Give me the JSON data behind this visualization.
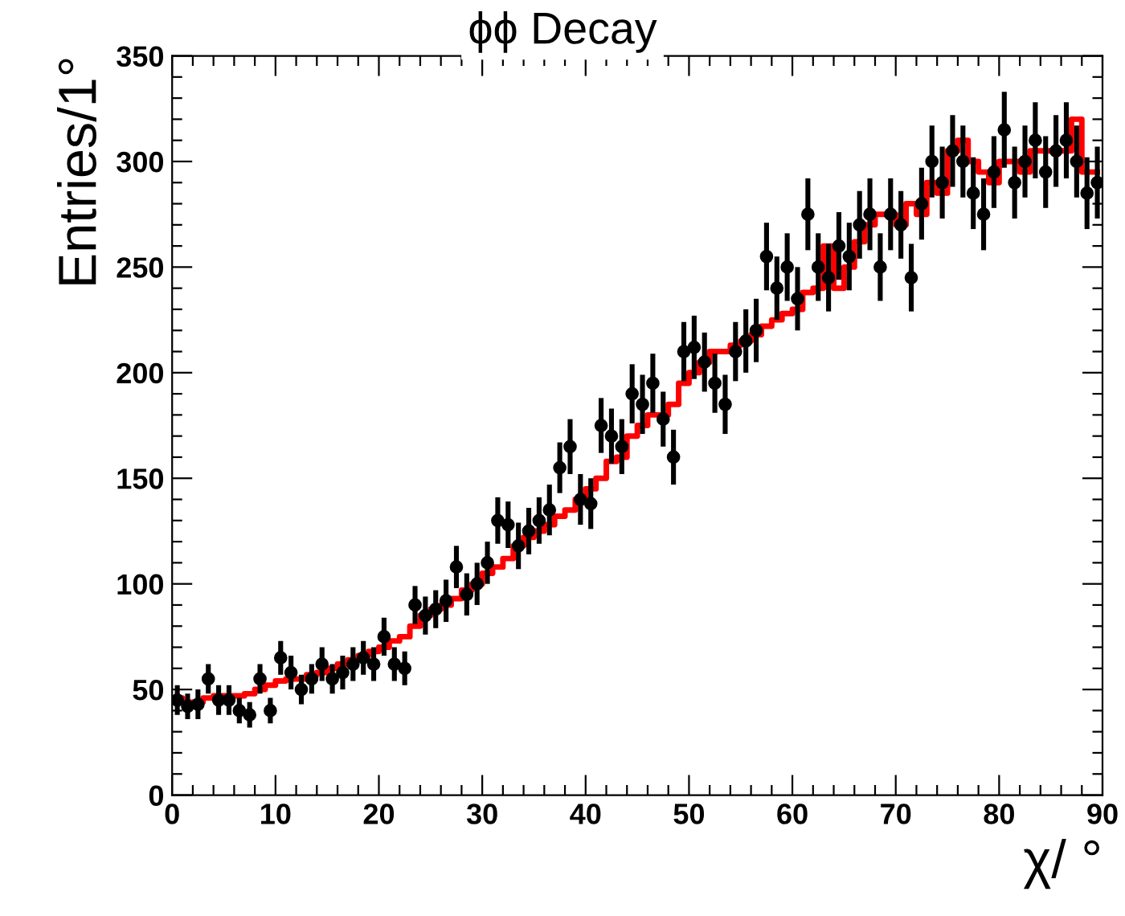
{
  "chart_data": {
    "type": "scatter",
    "title": "ϕϕ Decay",
    "xlabel": "χ/ °",
    "ylabel": "Entries/1°",
    "xlim": [
      0,
      90
    ],
    "ylim": [
      0,
      350
    ],
    "xticks": [
      0,
      10,
      20,
      30,
      40,
      50,
      60,
      70,
      80,
      90
    ],
    "yticks": [
      0,
      50,
      100,
      150,
      200,
      250,
      300,
      350
    ],
    "grid": false,
    "legend": false,
    "series": [
      {
        "type": "step",
        "color": "#ff0000",
        "x": [
          0.5,
          1.5,
          2.5,
          3.5,
          4.5,
          5.5,
          6.5,
          7.5,
          8.5,
          9.5,
          10.5,
          11.5,
          12.5,
          13.5,
          14.5,
          15.5,
          16.5,
          17.5,
          18.5,
          19.5,
          20.5,
          21.5,
          22.5,
          23.5,
          24.5,
          25.5,
          26.5,
          27.5,
          28.5,
          29.5,
          30.5,
          31.5,
          32.5,
          33.5,
          34.5,
          35.5,
          36.5,
          37.5,
          38.5,
          39.5,
          40.5,
          41.5,
          42.5,
          43.5,
          44.5,
          45.5,
          46.5,
          47.5,
          48.5,
          49.5,
          50.5,
          51.5,
          52.5,
          53.5,
          54.5,
          55.5,
          56.5,
          57.5,
          58.5,
          59.5,
          60.5,
          61.5,
          62.5,
          63.5,
          64.5,
          65.5,
          66.5,
          67.5,
          68.5,
          69.5,
          70.5,
          71.5,
          72.5,
          73.5,
          74.5,
          75.5,
          76.5,
          77.5,
          78.5,
          79.5,
          80.5,
          81.5,
          82.5,
          83.5,
          84.5,
          85.5,
          86.5,
          87.5,
          88.5,
          89.5
        ],
        "values": [
          46,
          44,
          44,
          46,
          47,
          47,
          47,
          48,
          50,
          52,
          54,
          55,
          55,
          57,
          58,
          60,
          62,
          64,
          66,
          68,
          70,
          73,
          75,
          80,
          85,
          88,
          90,
          93,
          97,
          100,
          105,
          108,
          112,
          118,
          122,
          125,
          128,
          132,
          135,
          140,
          145,
          150,
          158,
          160,
          170,
          175,
          180,
          180,
          185,
          195,
          200,
          205,
          210,
          210,
          213,
          215,
          218,
          222,
          225,
          228,
          230,
          238,
          240,
          260,
          240,
          250,
          262,
          270,
          275,
          275,
          270,
          280,
          275,
          290,
          285,
          305,
          310,
          300,
          295,
          290,
          300,
          300,
          295,
          305,
          305,
          305,
          305,
          320,
          295,
          295
        ]
      },
      {
        "color": "#000000",
        "marker": "circle",
        "x": [
          0.5,
          1.5,
          2.5,
          3.5,
          4.5,
          5.5,
          6.5,
          7.5,
          8.5,
          9.5,
          10.5,
          11.5,
          12.5,
          13.5,
          14.5,
          15.5,
          16.5,
          17.5,
          18.5,
          19.5,
          20.5,
          21.5,
          22.5,
          23.5,
          24.5,
          25.5,
          26.5,
          27.5,
          28.5,
          29.5,
          30.5,
          31.5,
          32.5,
          33.5,
          34.5,
          35.5,
          36.5,
          37.5,
          38.5,
          39.5,
          40.5,
          41.5,
          42.5,
          43.5,
          44.5,
          45.5,
          46.5,
          47.5,
          48.5,
          49.5,
          50.5,
          51.5,
          52.5,
          53.5,
          54.5,
          55.5,
          56.5,
          57.5,
          58.5,
          59.5,
          60.5,
          61.5,
          62.5,
          63.5,
          64.5,
          65.5,
          66.5,
          67.5,
          68.5,
          69.5,
          70.5,
          71.5,
          72.5,
          73.5,
          74.5,
          75.5,
          76.5,
          77.5,
          78.5,
          79.5,
          80.5,
          81.5,
          82.5,
          83.5,
          84.5,
          85.5,
          86.5,
          87.5,
          88.5,
          89.5
        ],
        "values": [
          45,
          42,
          43,
          55,
          45,
          45,
          40,
          38,
          55,
          40,
          65,
          58,
          50,
          55,
          62,
          55,
          58,
          62,
          65,
          62,
          75,
          62,
          60,
          90,
          85,
          88,
          92,
          108,
          95,
          100,
          110,
          130,
          128,
          118,
          125,
          130,
          135,
          155,
          165,
          140,
          138,
          175,
          170,
          165,
          190,
          185,
          195,
          178,
          160,
          210,
          212,
          205,
          195,
          185,
          210,
          215,
          220,
          255,
          240,
          250,
          235,
          275,
          250,
          245,
          260,
          255,
          270,
          275,
          250,
          275,
          270,
          245,
          280,
          300,
          290,
          305,
          300,
          285,
          275,
          295,
          315,
          290,
          300,
          310,
          295,
          305,
          310,
          300,
          285,
          290
        ],
        "errors": [
          7,
          6,
          7,
          7,
          7,
          7,
          6,
          6,
          7,
          6,
          8,
          8,
          7,
          7,
          8,
          7,
          8,
          8,
          8,
          8,
          9,
          8,
          8,
          9,
          9,
          9,
          10,
          10,
          10,
          10,
          10,
          11,
          11,
          11,
          11,
          11,
          12,
          12,
          13,
          12,
          12,
          13,
          13,
          13,
          14,
          14,
          14,
          13,
          13,
          14,
          15,
          14,
          14,
          14,
          14,
          15,
          15,
          16,
          15,
          16,
          15,
          17,
          16,
          16,
          16,
          16,
          16,
          17,
          16,
          17,
          16,
          16,
          17,
          17,
          17,
          17,
          17,
          17,
          17,
          17,
          18,
          17,
          17,
          18,
          17,
          17,
          18,
          17,
          17,
          17
        ],
        "xerrors": [
          0.5,
          0.5,
          0.5,
          0.5,
          0.5,
          0.5,
          0.5,
          0.5,
          0.5,
          0.5,
          0.5,
          0.5,
          0.5,
          0.5,
          0.5,
          0.5,
          0.5,
          0.5,
          0.5,
          0.5,
          0.5,
          0.5,
          0.5,
          0.5,
          0.5,
          0.5,
          0.5,
          0.5,
          0.5,
          0.5,
          0.5,
          0.5,
          0.5,
          0.5,
          0.5,
          0.5,
          0.5,
          0.5,
          0.5,
          0.5,
          0.5,
          0.5,
          0.5,
          0.5,
          0.5,
          0.5,
          0.5,
          0.5,
          0.5,
          0.5,
          0.5,
          0.5,
          0.5,
          0.5,
          0.5,
          0.5,
          0.5,
          0.5,
          0.5,
          0.5,
          0.5,
          0.5,
          0.5,
          0.5,
          0.5,
          0.5,
          0.5,
          0.5,
          0.5,
          0.5,
          0.5,
          0.5,
          0.5,
          0.5,
          0.5,
          0.5,
          0.5,
          0.5,
          0.5,
          0.5,
          0.5,
          0.5,
          0.5,
          0.5,
          0.5,
          0.5,
          0.5,
          0.5,
          0.5,
          0.5
        ]
      }
    ]
  }
}
